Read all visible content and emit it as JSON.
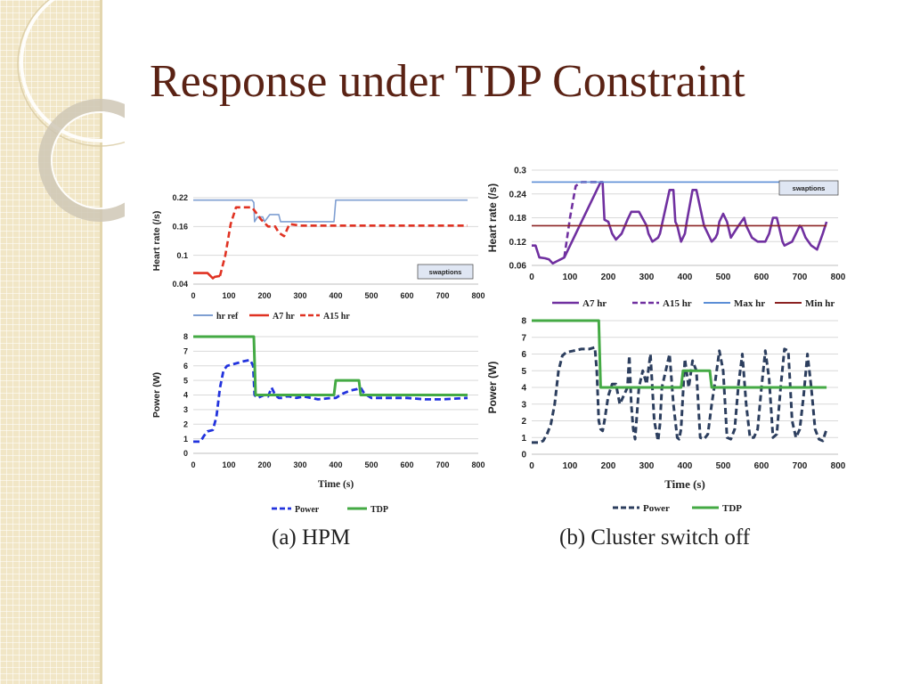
{
  "slide": {
    "title": "Response under TDP Constraint"
  },
  "captions": [
    "(a) HPM",
    "(b) Cluster switch off"
  ],
  "chart_data": [
    {
      "id": "hpm-hr",
      "type": "line",
      "ylabel": "Heart rate (/s)",
      "xlabel": "",
      "xlim": [
        0,
        800
      ],
      "ylim": [
        0.04,
        0.22
      ],
      "xticks": [
        "0",
        "100",
        "200",
        "300",
        "400",
        "500",
        "600",
        "700",
        "800"
      ],
      "yticks": [
        "0.04",
        "0.1",
        "0.16",
        "0.22"
      ],
      "annotation": "swaptions",
      "legend": "bottom",
      "series": [
        {
          "name": "hr ref",
          "color": "#7f9fd2",
          "style": "solid",
          "width": 1.6,
          "x": [
            0,
            165,
            170,
            172,
            180,
            195,
            200,
            215,
            240,
            245,
            265,
            270,
            330,
            395,
            400,
            770
          ],
          "y": [
            0.215,
            0.215,
            0.21,
            0.17,
            0.18,
            0.18,
            0.17,
            0.185,
            0.185,
            0.17,
            0.17,
            0.17,
            0.17,
            0.17,
            0.215,
            0.215
          ]
        },
        {
          "name": "A7 hr",
          "color": "#e03222",
          "style": "solid",
          "width": 2.6,
          "x": [
            0,
            40,
            55,
            60,
            75
          ],
          "y": [
            0.063,
            0.063,
            0.052,
            0.055,
            0.057
          ]
        },
        {
          "name": "A15 hr",
          "color": "#e03222",
          "style": "dash",
          "width": 2.6,
          "x": [
            75,
            90,
            105,
            120,
            150,
            165,
            175,
            190,
            210,
            230,
            240,
            255,
            270,
            300,
            350,
            400,
            450,
            500,
            550,
            600,
            650,
            700,
            770
          ],
          "y": [
            0.057,
            0.1,
            0.165,
            0.2,
            0.2,
            0.2,
            0.19,
            0.175,
            0.16,
            0.16,
            0.147,
            0.14,
            0.165,
            0.162,
            0.162,
            0.162,
            0.162,
            0.162,
            0.162,
            0.162,
            0.162,
            0.162,
            0.162
          ]
        }
      ]
    },
    {
      "id": "hpm-power",
      "type": "line",
      "ylabel": "Power (W)",
      "xlabel": "Time (s)",
      "xlim": [
        0,
        800
      ],
      "ylim": [
        0,
        8
      ],
      "xticks": [
        "0",
        "100",
        "200",
        "300",
        "400",
        "500",
        "600",
        "700",
        "800"
      ],
      "yticks": [
        "0",
        "1",
        "2",
        "3",
        "4",
        "5",
        "6",
        "7",
        "8"
      ],
      "legend": "bottom",
      "series": [
        {
          "name": "Power",
          "color": "#2233dd",
          "style": "dash",
          "width": 2.8,
          "x": [
            0,
            20,
            30,
            40,
            55,
            65,
            75,
            85,
            95,
            110,
            125,
            140,
            160,
            168,
            172,
            180,
            190,
            200,
            210,
            220,
            230,
            240,
            250,
            260,
            270,
            290,
            310,
            350,
            390,
            400,
            420,
            440,
            460,
            470,
            480,
            500,
            550,
            600,
            650,
            700,
            770
          ],
          "y": [
            0.8,
            0.8,
            1.2,
            1.5,
            1.6,
            2.5,
            4.5,
            5.7,
            6,
            6.1,
            6.2,
            6.3,
            6.4,
            6,
            4,
            3.8,
            3.9,
            4,
            3.9,
            4.5,
            4,
            3.8,
            3.8,
            3.9,
            3.9,
            3.8,
            3.9,
            3.7,
            3.8,
            3.8,
            4.1,
            4.3,
            4.4,
            4.5,
            4.1,
            3.8,
            3.8,
            3.8,
            3.7,
            3.7,
            3.8
          ]
        },
        {
          "name": "TDP",
          "color": "#44aa44",
          "style": "solid",
          "width": 3,
          "x": [
            0,
            170,
            175,
            395,
            400,
            465,
            470,
            770
          ],
          "y": [
            8,
            8,
            4,
            4,
            5,
            5,
            4,
            4
          ]
        }
      ]
    },
    {
      "id": "switch-hr",
      "type": "line",
      "ylabel": "Heart rate (/s)",
      "xlabel": "",
      "xlim": [
        0,
        800
      ],
      "ylim": [
        0.06,
        0.3
      ],
      "xticks": [
        "0",
        "100",
        "200",
        "300",
        "400",
        "500",
        "600",
        "700",
        "800"
      ],
      "yticks": [
        "0.06",
        "0.12",
        "0.18",
        "0.24",
        "0.3"
      ],
      "annotation": "swaptions",
      "legend": "bottom",
      "series": [
        {
          "name": "A7 hr",
          "color": "#7030a0",
          "style": "solid",
          "width": 2.6,
          "x": [
            0,
            10,
            20,
            35,
            45,
            55,
            65,
            75,
            85,
            180,
            185,
            190,
            200,
            210,
            220,
            235,
            250,
            260,
            280,
            300,
            305,
            310,
            315,
            330,
            335,
            360,
            370,
            375,
            380,
            385,
            390,
            400,
            405,
            420,
            430,
            450,
            460,
            470,
            480,
            485,
            490,
            500,
            510,
            520,
            540,
            555,
            560,
            575,
            590,
            610,
            620,
            630,
            640,
            650,
            655,
            660,
            680,
            690,
            700,
            705,
            715,
            730,
            745,
            760,
            770
          ],
          "y": [
            0.11,
            0.11,
            0.08,
            0.078,
            0.075,
            0.065,
            0.07,
            0.075,
            0.08,
            0.27,
            0.27,
            0.175,
            0.17,
            0.14,
            0.125,
            0.14,
            0.175,
            0.195,
            0.195,
            0.16,
            0.14,
            0.13,
            0.12,
            0.13,
            0.14,
            0.25,
            0.25,
            0.17,
            0.16,
            0.14,
            0.12,
            0.14,
            0.17,
            0.25,
            0.25,
            0.16,
            0.14,
            0.12,
            0.13,
            0.14,
            0.17,
            0.19,
            0.17,
            0.13,
            0.16,
            0.18,
            0.16,
            0.13,
            0.12,
            0.12,
            0.14,
            0.18,
            0.18,
            0.14,
            0.12,
            0.11,
            0.12,
            0.14,
            0.16,
            0.155,
            0.13,
            0.11,
            0.1,
            0.14,
            0.17
          ]
        },
        {
          "name": "A15 hr",
          "color": "#7030a0",
          "style": "dash",
          "width": 2.6,
          "x": [
            85,
            100,
            115,
            130,
            150,
            170,
            180
          ],
          "y": [
            0.08,
            0.18,
            0.26,
            0.27,
            0.27,
            0.27,
            0.27
          ]
        },
        {
          "name": "Max hr",
          "color": "#5b8ed6",
          "style": "solid",
          "width": 1.6,
          "x": [
            0,
            770
          ],
          "y": [
            0.27,
            0.27
          ]
        },
        {
          "name": "Min hr",
          "color": "#8b2222",
          "style": "solid",
          "width": 1.6,
          "x": [
            0,
            770
          ],
          "y": [
            0.16,
            0.16
          ]
        }
      ]
    },
    {
      "id": "switch-power",
      "type": "line",
      "ylabel": "Power (W)",
      "xlabel": "Time (s)",
      "xlim": [
        0,
        800
      ],
      "ylim": [
        0,
        8
      ],
      "xticks": [
        "0",
        "100",
        "200",
        "300",
        "400",
        "500",
        "600",
        "700",
        "800"
      ],
      "yticks": [
        "0",
        "1",
        "2",
        "3",
        "4",
        "5",
        "6",
        "7",
        "8"
      ],
      "legend": "bottom",
      "series": [
        {
          "name": "Power",
          "color": "#2c3e5e",
          "style": "dash",
          "width": 3,
          "x": [
            0,
            20,
            30,
            40,
            50,
            60,
            70,
            80,
            90,
            110,
            130,
            150,
            165,
            170,
            175,
            180,
            185,
            190,
            200,
            210,
            220,
            230,
            240,
            250,
            255,
            260,
            265,
            270,
            280,
            290,
            300,
            310,
            320,
            330,
            335,
            340,
            350,
            360,
            370,
            380,
            385,
            390,
            400,
            410,
            420,
            430,
            440,
            450,
            460,
            470,
            480,
            490,
            500,
            510,
            520,
            530,
            540,
            550,
            560,
            570,
            580,
            590,
            600,
            610,
            620,
            630,
            640,
            650,
            660,
            670,
            680,
            690,
            700,
            710,
            720,
            730,
            740,
            750,
            760,
            770
          ],
          "y": [
            0.7,
            0.7,
            0.8,
            1.2,
            1.8,
            3,
            5,
            5.9,
            6.1,
            6.2,
            6.3,
            6.3,
            6.4,
            5,
            2,
            1.5,
            1.4,
            2,
            3.5,
            4.2,
            4.2,
            3,
            3.5,
            4,
            5.9,
            3,
            1.5,
            0.9,
            4,
            5,
            4.2,
            6,
            2,
            0.8,
            1.8,
            4,
            5,
            6,
            3,
            1,
            0.9,
            1.5,
            5.7,
            4,
            5.6,
            5,
            1,
            0.9,
            1.2,
            3,
            4.5,
            6.2,
            5,
            1,
            0.9,
            1.5,
            4.2,
            6,
            3,
            1,
            1,
            1.5,
            4,
            6.2,
            4.5,
            1,
            1.2,
            4,
            6.3,
            6.2,
            2,
            1,
            1.5,
            3.5,
            6,
            4,
            1.5,
            0.9,
            0.8,
            1.5
          ]
        },
        {
          "name": "TDP",
          "color": "#44aa44",
          "style": "solid",
          "width": 3,
          "x": [
            0,
            175,
            180,
            390,
            395,
            465,
            470,
            770
          ],
          "y": [
            8,
            8,
            4,
            4,
            5,
            5,
            4,
            4
          ]
        }
      ]
    }
  ]
}
